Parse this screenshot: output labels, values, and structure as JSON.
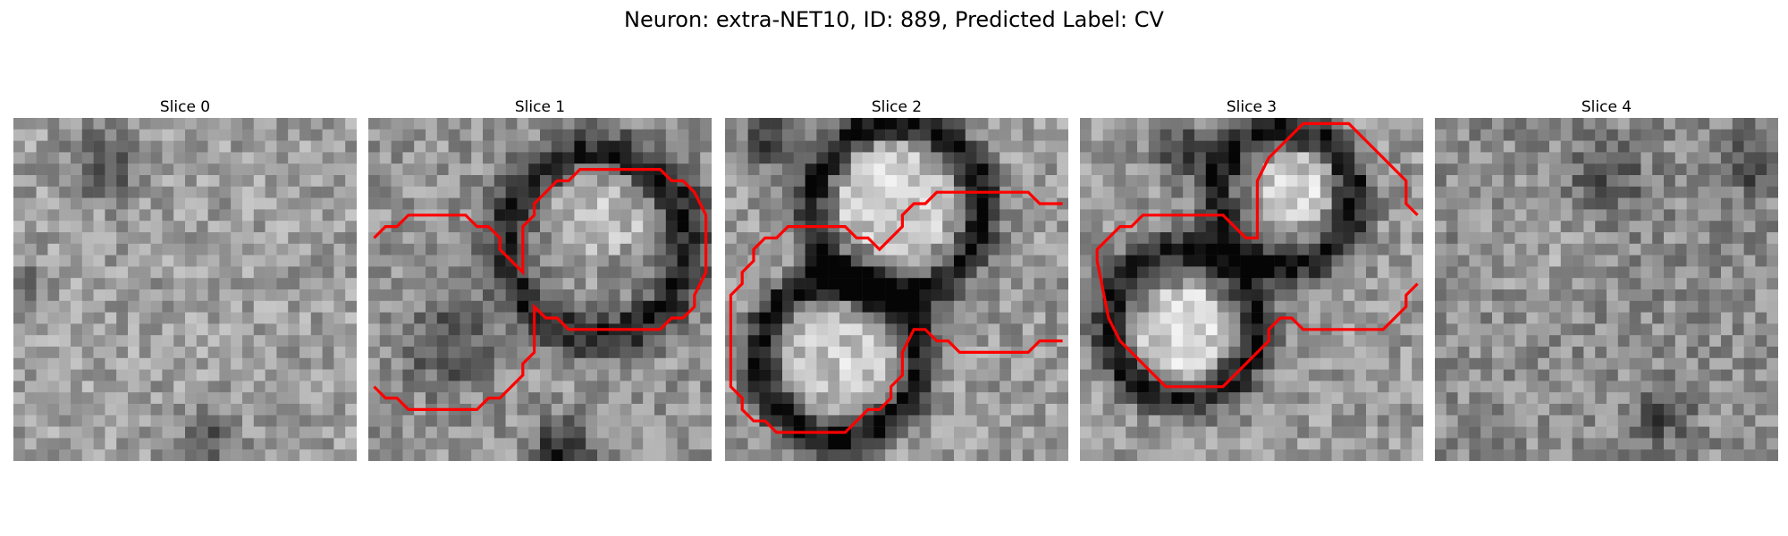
{
  "figure": {
    "title": "Neuron: extra-NET10, ID: 889, Predicted Label: CV"
  },
  "slices": [
    {
      "title": "Slice 0"
    },
    {
      "title": "Slice 1"
    },
    {
      "title": "Slice 2"
    },
    {
      "title": "Slice 3"
    },
    {
      "title": "Slice 4"
    }
  ],
  "colors": {
    "contour": "#ff0000",
    "colormap": "gray"
  }
}
